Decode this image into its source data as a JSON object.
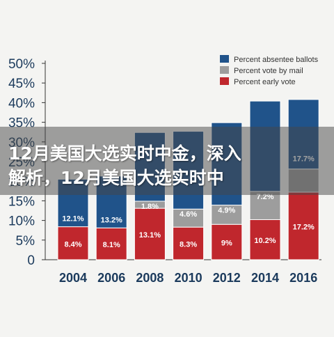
{
  "chart_data": {
    "type": "bar",
    "stacked": true,
    "categories": [
      "2004",
      "2006",
      "2008",
      "2010",
      "2012",
      "2014",
      "2016"
    ],
    "series": [
      {
        "name": "Percent early vote",
        "color": "#c0272d",
        "values": [
          8.4,
          8.1,
          13.1,
          8.3,
          9.0,
          10.2,
          17.2
        ],
        "labels": [
          "8.4%",
          "8.1%",
          "13.1%",
          "8.3%",
          "9%",
          "10.2%",
          "17.2%"
        ]
      },
      {
        "name": "Percent vote by mail",
        "color": "#9d9d9d",
        "values": [
          0,
          0,
          1.8,
          4.6,
          4.9,
          7.2,
          5.9
        ],
        "labels": [
          "",
          "",
          "1.8%",
          "4.6%",
          "4.9%",
          "7.2%",
          ""
        ]
      },
      {
        "name": "Percent absentee ballots",
        "color": "#20538a",
        "values": [
          12.1,
          13.2,
          17.5,
          19.8,
          21.0,
          23.0,
          17.7
        ],
        "labels": [
          "12.1%",
          "13.2%",
          "",
          "",
          "",
          "",
          "17.7%"
        ]
      }
    ],
    "legend_order": [
      2,
      1,
      0
    ],
    "ylim": [
      0,
      50
    ],
    "yticks": [
      "0",
      "5%",
      "10%",
      "15%",
      "20%",
      "25%",
      "30%",
      "35%",
      "40%",
      "45%",
      "50%"
    ],
    "legend_position": "top-right",
    "grid": false
  },
  "overlay": {
    "line1": "12月美国大选实时中金，深入",
    "line2": "解析，12月美国大选实时中"
  }
}
